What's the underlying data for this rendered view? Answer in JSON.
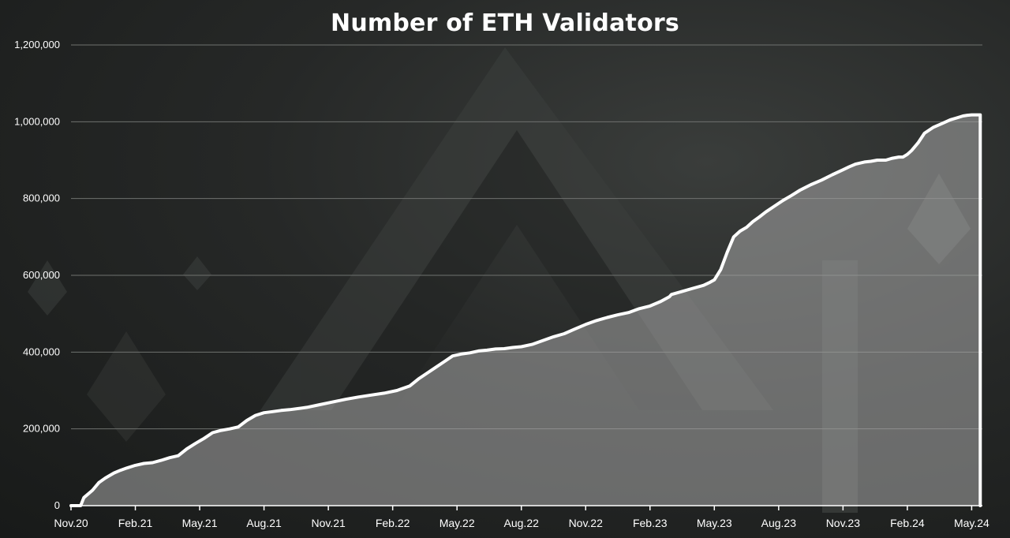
{
  "chart_data": {
    "type": "area",
    "title": "Number of ETH Validators",
    "xlabel": "",
    "ylabel": "",
    "ylim": [
      0,
      1200000
    ],
    "grid": true,
    "legend": "none",
    "y_tick_labels": [
      "0",
      "200,000",
      "400,000",
      "600,000",
      "800,000",
      "1,000,000",
      "1,200,000"
    ],
    "y_tick_values": [
      0,
      200000,
      400000,
      600000,
      800000,
      1000000,
      1200000
    ],
    "x_tick_labels": [
      "Nov.20",
      "Feb.21",
      "May.21",
      "Aug.21",
      "Nov.21",
      "Feb.22",
      "May.22",
      "Aug.22",
      "Nov.22",
      "Feb.23",
      "May.23",
      "Aug.23",
      "Nov.23",
      "Feb.24",
      "May.24"
    ],
    "x_tick_months": [
      0,
      3,
      6,
      9,
      12,
      15,
      18,
      21,
      24,
      27,
      30,
      33,
      36,
      39,
      42
    ],
    "x_range_months": [
      0,
      42.5
    ],
    "series": [
      {
        "x_months": [
          0,
          0.45,
          0.6,
          1.0,
          1.3,
          1.6,
          2.0,
          2.3,
          2.6,
          3.0,
          3.4,
          3.8,
          4.2,
          4.6,
          5.0,
          5.4,
          5.8,
          6.2,
          6.6,
          7.0,
          7.4,
          7.8,
          8.2,
          8.6,
          9.0,
          9.4,
          9.8,
          10.2,
          10.6,
          11.0,
          11.6,
          12.2,
          12.8,
          13.4,
          14.0,
          14.6,
          15.2,
          15.8,
          16.2,
          16.6,
          17.0,
          17.4,
          17.8,
          18.2,
          18.6,
          19.0,
          19.4,
          19.8,
          20.2,
          20.6,
          21.0,
          21.5,
          22.0,
          22.5,
          23.0,
          23.5,
          24.0,
          24.5,
          25.0,
          25.5,
          26.0,
          26.5,
          27.0,
          27.5,
          27.9,
          28.0,
          28.5,
          29.0,
          29.5,
          29.8,
          30.0,
          30.3,
          30.6,
          30.9,
          31.2,
          31.5,
          31.8,
          32.1,
          32.4,
          32.8,
          33.2,
          33.6,
          34.0,
          34.5,
          35.0,
          35.5,
          36.0,
          36.3,
          36.6,
          37.0,
          37.3,
          37.6,
          38.0,
          38.3,
          38.6,
          38.8,
          39.0,
          39.2,
          39.5,
          39.8,
          40.2,
          40.6,
          41.0,
          41.3,
          41.6,
          41.8,
          42.0,
          42.3,
          42.4
        ],
        "values": [
          0,
          0,
          21000,
          40000,
          60000,
          72000,
          85000,
          92000,
          98000,
          105000,
          110000,
          112000,
          118000,
          125000,
          130000,
          148000,
          162000,
          175000,
          190000,
          196000,
          200000,
          205000,
          222000,
          235000,
          242000,
          245000,
          248000,
          250000,
          253000,
          256000,
          263000,
          270000,
          277000,
          283000,
          288000,
          293000,
          300000,
          312000,
          330000,
          345000,
          360000,
          375000,
          390000,
          395000,
          398000,
          403000,
          405000,
          408000,
          409000,
          412000,
          414000,
          420000,
          430000,
          440000,
          448000,
          460000,
          472000,
          482000,
          490000,
          497000,
          503000,
          513000,
          520000,
          532000,
          544000,
          550000,
          558000,
          566000,
          574000,
          582000,
          588000,
          615000,
          660000,
          700000,
          715000,
          725000,
          740000,
          752000,
          765000,
          780000,
          795000,
          808000,
          822000,
          836000,
          848000,
          862000,
          875000,
          883000,
          890000,
          895000,
          897000,
          900000,
          900000,
          905000,
          908000,
          908000,
          915000,
          925000,
          945000,
          970000,
          985000,
          995000,
          1005000,
          1010000,
          1015000,
          1017000,
          1018000,
          1018000,
          1018000
        ]
      }
    ],
    "colors": {
      "line": "#ffffff",
      "fill": "#a8a8a8",
      "grid": "#6f726f",
      "axis": "#ffffff"
    }
  }
}
